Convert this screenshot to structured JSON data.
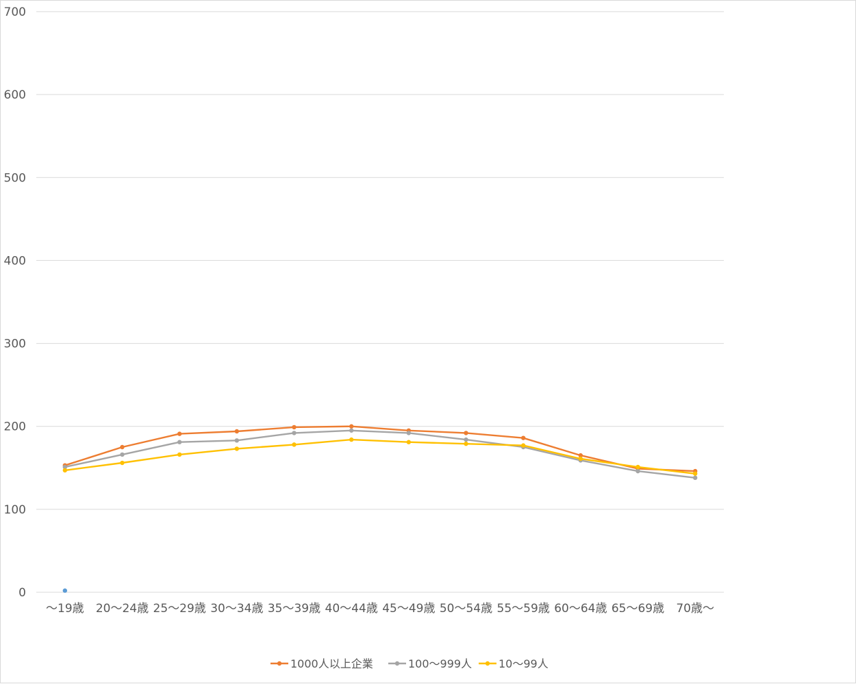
{
  "chart_data": {
    "type": "line",
    "title": "",
    "xlabel": "",
    "ylabel": "",
    "ylim": [
      0,
      700
    ],
    "yticks": [
      0,
      100,
      200,
      300,
      400,
      500,
      600,
      700
    ],
    "grid": true,
    "legend": "bottom",
    "categories": [
      "～19歳",
      "20～24歳",
      "25～29歳",
      "30～34歳",
      "35～39歳",
      "40～44歳",
      "45～49歳",
      "50～54歳",
      "55～59歳",
      "60～64歳",
      "65～69歳",
      "70歳～"
    ],
    "series": [
      {
        "name": "1000人以上企業",
        "color": "#ED7D31",
        "values": [
          153,
          175,
          191,
          194,
          199,
          200,
          195,
          192,
          186,
          165,
          149,
          146
        ]
      },
      {
        "name": "100～999人",
        "color": "#A5A5A5",
        "values": [
          151,
          166,
          181,
          183,
          192,
          195,
          192,
          184,
          175,
          159,
          146,
          138
        ]
      },
      {
        "name": "10～99人",
        "color": "#FFC000",
        "values": [
          147,
          156,
          166,
          173,
          178,
          184,
          181,
          179,
          177,
          161,
          151,
          143
        ]
      }
    ],
    "stray_point": {
      "category": "～19歳",
      "value": 2,
      "color": "#5B9BD5"
    }
  }
}
